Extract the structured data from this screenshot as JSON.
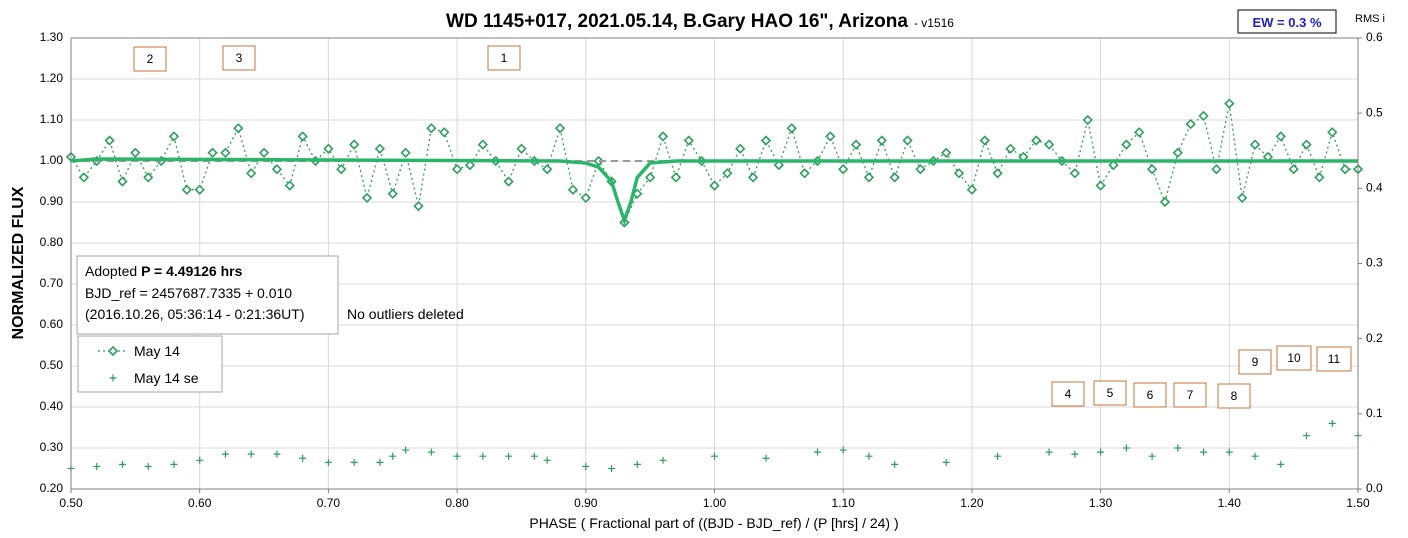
{
  "chart_data": {
    "type": "line",
    "title": "WD 1145+017, 2021.05.14, B.Gary HAO 16\", Arizona",
    "subtitle": "- v1516",
    "x_label": "PHASE ( Fractional part of ((BJD - BJD_ref) / (P [hrs] / 24) )",
    "y_label": "NORMALIZED FLUX",
    "y2_label": "RMS i",
    "ew_label": "EW = 0.3 %",
    "info": {
      "prefix": "Adopted ",
      "period": "P = 4.49126 hrs",
      "line2": "BJD_ref = 2457687.7335 + 0.010",
      "line3": "(2016.10.26, 05:36:14 - 0:21:36UT)"
    },
    "note": "No outliers deleted",
    "annotations": [
      "2",
      "3",
      "1",
      "4",
      "5",
      "6",
      "7",
      "8",
      "9",
      "10",
      "11"
    ],
    "xlim": [
      0.5,
      1.5
    ],
    "xticks": [
      {
        "value": 0.5,
        "label": "0.50"
      },
      {
        "value": 0.6,
        "label": "0.60"
      },
      {
        "value": 0.7,
        "label": "0.70"
      },
      {
        "value": 0.8,
        "label": "0.80"
      },
      {
        "value": 0.9,
        "label": "0.90"
      },
      {
        "value": 1.0,
        "label": "1.00"
      },
      {
        "value": 1.1,
        "label": "1.10"
      },
      {
        "value": 1.2,
        "label": "1.20"
      },
      {
        "value": 1.3,
        "label": "1.30"
      },
      {
        "value": 1.4,
        "label": "1.40"
      },
      {
        "value": 1.5,
        "label": "1.50"
      }
    ],
    "ylim": [
      0.2,
      1.3
    ],
    "yticks": [
      {
        "value": 0.2,
        "label": "0.20"
      },
      {
        "value": 0.3,
        "label": "0.30"
      },
      {
        "value": 0.4,
        "label": "0.40"
      },
      {
        "value": 0.5,
        "label": "0.50"
      },
      {
        "value": 0.6,
        "label": "0.60"
      },
      {
        "value": 0.7,
        "label": "0.70"
      },
      {
        "value": 0.8,
        "label": "0.80"
      },
      {
        "value": 0.9,
        "label": "0.90"
      },
      {
        "value": 1.0,
        "label": "1.00"
      },
      {
        "value": 1.1,
        "label": "1.10"
      },
      {
        "value": 1.2,
        "label": "1.20"
      },
      {
        "value": 1.3,
        "label": "1.30"
      }
    ],
    "y2lim": [
      0,
      0.6
    ],
    "y2ticks": [
      {
        "value": 0,
        "label": "0.0"
      },
      0.1,
      0.2,
      0.3,
      0.4,
      0.5,
      0.6
    ],
    "grid": true,
    "series": [
      {
        "name": "May 14",
        "color": "#2e9e5e",
        "marker": "diamond",
        "line": "dotted",
        "x": [
          0.5,
          0.51,
          0.52,
          0.53,
          0.54,
          0.55,
          0.56,
          0.57,
          0.58,
          0.59,
          0.6,
          0.61,
          0.62,
          0.63,
          0.64,
          0.65,
          0.66,
          0.67,
          0.68,
          0.69,
          0.7,
          0.71,
          0.72,
          0.73,
          0.74,
          0.75,
          0.76,
          0.77,
          0.78,
          0.79,
          0.8,
          0.81,
          0.82,
          0.83,
          0.84,
          0.85,
          0.86,
          0.87,
          0.88,
          0.89,
          0.9,
          0.91,
          0.92,
          0.93,
          0.94,
          0.95,
          0.96,
          0.97,
          0.98,
          0.99,
          1.0,
          1.01,
          1.02,
          1.03,
          1.04,
          1.05,
          1.06,
          1.07,
          1.08,
          1.09,
          1.1,
          1.11,
          1.12,
          1.13,
          1.14,
          1.15,
          1.16,
          1.17,
          1.18,
          1.19,
          1.2,
          1.21,
          1.22,
          1.23,
          1.24,
          1.25,
          1.26,
          1.27,
          1.28,
          1.29,
          1.3,
          1.31,
          1.32,
          1.33,
          1.34,
          1.35,
          1.36,
          1.37,
          1.38,
          1.39,
          1.4,
          1.41,
          1.42,
          1.43,
          1.44,
          1.45,
          1.46,
          1.47,
          1.48,
          1.49,
          1.5
        ],
        "values": [
          1.01,
          0.96,
          1.0,
          1.05,
          0.95,
          1.02,
          0.96,
          1.0,
          1.06,
          0.93,
          0.93,
          1.02,
          1.02,
          1.08,
          0.97,
          1.02,
          0.98,
          0.94,
          1.06,
          1.0,
          1.03,
          0.98,
          1.04,
          0.91,
          1.03,
          0.92,
          1.02,
          0.89,
          1.08,
          1.07,
          0.98,
          0.99,
          1.04,
          1.0,
          0.95,
          1.03,
          1.0,
          0.98,
          1.08,
          0.93,
          0.91,
          1.0,
          0.95,
          0.85,
          0.92,
          0.96,
          1.06,
          0.96,
          1.05,
          1.0,
          0.94,
          0.97,
          1.03,
          0.96,
          1.05,
          0.99,
          1.08,
          0.97,
          1.0,
          1.06,
          0.98,
          1.04,
          0.96,
          1.05,
          0.96,
          1.05,
          0.98,
          1.0,
          1.02,
          0.97,
          0.93,
          1.05,
          0.97,
          1.03,
          1.01,
          1.05,
          1.04,
          1.0,
          0.97,
          1.1,
          0.94,
          0.99,
          1.04,
          1.07,
          0.98,
          0.9,
          1.02,
          1.09,
          1.11,
          0.98,
          1.14,
          0.91,
          1.04,
          1.01,
          1.06,
          0.98,
          1.04,
          0.96,
          1.07,
          0.98,
          0.98
        ]
      },
      {
        "name": "May 14 se",
        "color": "#2e9e5e",
        "marker": "plus",
        "line": "none",
        "x": [
          0.5,
          0.52,
          0.54,
          0.56,
          0.58,
          0.6,
          0.62,
          0.64,
          0.66,
          0.68,
          0.7,
          0.72,
          0.74,
          0.75,
          0.76,
          0.78,
          0.8,
          0.82,
          0.84,
          0.86,
          0.87,
          0.9,
          0.92,
          0.94,
          0.96,
          1.0,
          1.04,
          1.08,
          1.1,
          1.12,
          1.14,
          1.18,
          1.22,
          1.26,
          1.28,
          1.3,
          1.32,
          1.34,
          1.36,
          1.38,
          1.4,
          1.42,
          1.44,
          1.46,
          1.48,
          1.5
        ],
        "values": [
          0.25,
          0.255,
          0.26,
          0.255,
          0.26,
          0.27,
          0.285,
          0.285,
          0.285,
          0.275,
          0.265,
          0.265,
          0.265,
          0.28,
          0.295,
          0.29,
          0.28,
          0.28,
          0.28,
          0.28,
          0.27,
          0.255,
          0.25,
          0.26,
          0.27,
          0.28,
          0.275,
          0.29,
          0.295,
          0.28,
          0.26,
          0.265,
          0.28,
          0.29,
          0.285,
          0.29,
          0.3,
          0.28,
          0.3,
          0.29,
          0.29,
          0.28,
          0.26,
          0.33,
          0.36,
          0.33
        ]
      },
      {
        "color": "#9a9a9a",
        "marker": "none",
        "line": "dashed",
        "x": [
          0.5,
          1.5
        ],
        "values": [
          1.0,
          1.0
        ]
      },
      {
        "color": "#2ab56a",
        "marker": "none",
        "line": "solid",
        "x": [
          0.5,
          0.52,
          0.88,
          0.9,
          0.91,
          0.92,
          0.925,
          0.93,
          0.935,
          0.94,
          0.95,
          0.97,
          1.5
        ],
        "values": [
          1.0,
          1.005,
          1.0,
          0.995,
          0.985,
          0.95,
          0.9,
          0.855,
          0.9,
          0.96,
          0.995,
          1.0,
          1.0
        ]
      }
    ]
  }
}
